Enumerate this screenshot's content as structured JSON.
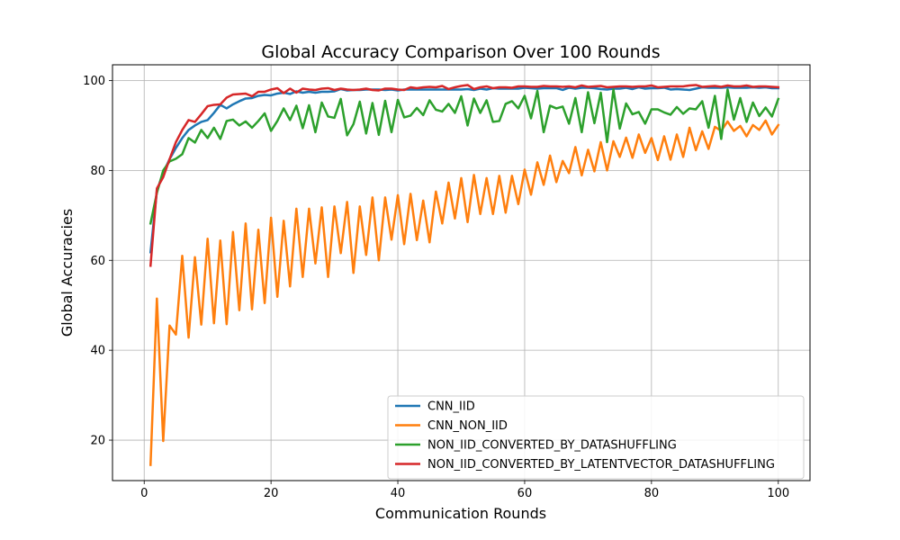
{
  "chart_data": {
    "type": "line",
    "title": "Global Accuracy Comparison Over 100 Rounds",
    "xlabel": "Communication Rounds",
    "ylabel": "Global Accuracies",
    "xlim": [
      -5,
      105
    ],
    "ylim": [
      11,
      103.5
    ],
    "xticks": [
      "0",
      "20",
      "40",
      "60",
      "80",
      "100"
    ],
    "yticks": [
      "20",
      "40",
      "60",
      "80",
      "100"
    ],
    "grid": true,
    "legend_position": "lower-right",
    "series": [
      {
        "name": "CNN_IID",
        "color": "#1f77b4",
        "values": [
          61.8,
          75.5,
          79.5,
          82.5,
          85.0,
          87.2,
          89.0,
          90.0,
          90.8,
          91.2,
          92.8,
          94.6,
          93.8,
          94.7,
          95.4,
          96.0,
          96.1,
          96.6,
          96.8,
          96.7,
          97.1,
          97.3,
          97.0,
          97.6,
          97.3,
          97.5,
          97.3,
          97.5,
          97.5,
          97.6,
          98.1,
          97.8,
          97.9,
          97.9,
          98.0,
          98.0,
          98.0,
          97.9,
          98.0,
          97.8,
          98.0,
          98.0,
          98.0,
          98.0,
          98.0,
          98.0,
          98.0,
          98.0,
          98.0,
          98.0,
          98.1,
          97.9,
          98.2,
          98.0,
          98.3,
          98.2,
          98.2,
          98.2,
          98.2,
          98.4,
          98.3,
          98.2,
          98.3,
          98.3,
          98.3,
          97.9,
          98.4,
          98.2,
          98.4,
          98.4,
          98.3,
          98.1,
          98.0,
          98.2,
          98.2,
          98.4,
          98.1,
          98.5,
          98.2,
          98.3,
          98.3,
          98.4,
          98.0,
          98.1,
          98.0,
          97.9,
          98.2,
          98.5,
          98.4,
          98.4,
          98.4,
          98.5,
          98.4,
          98.4,
          98.4,
          98.5,
          98.4,
          98.5,
          98.3,
          98.3
        ]
      },
      {
        "name": "CNN_NON_IID",
        "color": "#ff7f0e",
        "values": [
          14.5,
          51.5,
          19.8,
          45.5,
          43.5,
          61.0,
          42.8,
          60.7,
          45.7,
          64.8,
          46.0,
          64.4,
          45.8,
          66.3,
          48.9,
          68.2,
          49.1,
          66.8,
          50.5,
          69.5,
          51.9,
          68.8,
          54.2,
          71.5,
          56.3,
          71.5,
          59.3,
          71.8,
          56.3,
          72.0,
          61.6,
          73.0,
          57.2,
          72.0,
          61.2,
          74.0,
          60.0,
          74.0,
          64.6,
          74.5,
          63.6,
          74.8,
          64.5,
          73.3,
          64.0,
          75.3,
          68.2,
          77.3,
          69.3,
          78.3,
          68.5,
          79.0,
          70.3,
          78.3,
          70.3,
          78.8,
          70.6,
          78.8,
          72.5,
          80.2,
          74.6,
          81.8,
          76.8,
          83.3,
          77.4,
          82.1,
          79.4,
          85.2,
          78.9,
          84.6,
          79.8,
          86.3,
          80.0,
          86.5,
          83.0,
          87.3,
          82.8,
          88.0,
          83.9,
          87.2,
          82.3,
          87.6,
          82.4,
          88.0,
          83.0,
          89.5,
          84.5,
          88.7,
          84.8,
          89.7,
          88.8,
          90.9,
          88.8,
          89.9,
          87.6,
          90.1,
          89.0,
          91.1,
          88.0,
          90.1
        ]
      },
      {
        "name": "NON_IID_CONVERTED_BY_DATASHUFFLING",
        "color": "#2ca02c",
        "values": [
          68.2,
          75.0,
          80.0,
          82.0,
          82.6,
          83.6,
          87.2,
          86.2,
          89.0,
          87.2,
          89.5,
          87.0,
          91.0,
          91.3,
          90.0,
          90.9,
          89.5,
          91.0,
          92.7,
          88.8,
          91.0,
          93.8,
          91.2,
          94.4,
          89.4,
          94.5,
          88.5,
          95.1,
          92.0,
          91.7,
          95.9,
          87.8,
          90.3,
          95.3,
          88.2,
          95.0,
          87.9,
          95.5,
          88.5,
          95.7,
          91.8,
          92.2,
          93.9,
          92.3,
          95.6,
          93.5,
          93.1,
          94.8,
          92.8,
          96.5,
          90.0,
          96.0,
          92.8,
          95.6,
          90.8,
          91.0,
          94.8,
          95.4,
          93.8,
          96.6,
          91.6,
          97.7,
          88.5,
          94.4,
          93.8,
          94.2,
          90.4,
          96.1,
          88.5,
          97.4,
          90.5,
          97.3,
          86.3,
          98.0,
          89.3,
          94.9,
          92.5,
          93.0,
          90.4,
          93.6,
          93.6,
          92.9,
          92.4,
          94.1,
          92.6,
          93.8,
          93.6,
          95.4,
          89.5,
          96.6,
          87.0,
          98.0,
          91.3,
          96.1,
          90.8,
          95.1,
          92.1,
          94.0,
          92.0,
          95.9
        ]
      },
      {
        "name": "NON_IID_CONVERTED_BY_LATENTVECTOR_DATASHUFFLING",
        "color": "#d62728",
        "values": [
          58.8,
          76.0,
          78.5,
          82.5,
          86.3,
          89.0,
          91.2,
          90.8,
          92.5,
          94.3,
          94.6,
          94.7,
          96.2,
          96.9,
          97.0,
          97.1,
          96.5,
          97.5,
          97.5,
          98.0,
          98.3,
          97.2,
          98.2,
          97.3,
          98.2,
          98.0,
          97.9,
          98.2,
          98.3,
          97.9,
          98.2,
          98.0,
          97.9,
          98.0,
          98.2,
          97.9,
          97.8,
          98.2,
          98.2,
          98.0,
          97.9,
          98.5,
          98.3,
          98.5,
          98.6,
          98.5,
          98.8,
          98.1,
          98.5,
          98.8,
          99.0,
          98.1,
          98.5,
          98.7,
          98.3,
          98.5,
          98.5,
          98.4,
          98.7,
          98.7,
          98.6,
          98.6,
          98.8,
          98.7,
          98.7,
          98.6,
          98.7,
          98.5,
          98.9,
          98.6,
          98.7,
          98.8,
          98.5,
          98.6,
          98.7,
          98.7,
          98.6,
          98.7,
          98.7,
          98.9,
          98.5,
          98.6,
          98.7,
          98.7,
          98.7,
          98.9,
          99.0,
          98.6,
          98.7,
          98.8,
          98.6,
          98.9,
          98.7,
          98.7,
          98.9,
          98.6,
          98.7,
          98.7,
          98.6,
          98.5
        ]
      }
    ]
  }
}
